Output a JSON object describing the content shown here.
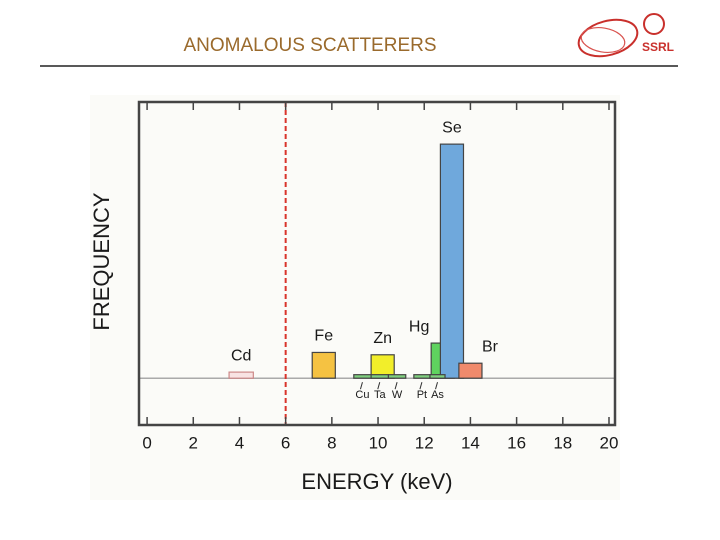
{
  "slide_title": "ANOMALOUS SCATTERERS",
  "logo": "SSRL",
  "chart_data": {
    "type": "bar",
    "xlabel": "ENERGY (keV)",
    "ylabel": "FREQUENCY",
    "xlim": [
      -0.35,
      20.26
    ],
    "ylim": [
      -20,
      118
    ],
    "xticks": [
      0,
      2,
      4,
      6,
      8,
      10,
      12,
      14,
      16,
      18,
      20
    ],
    "reference_line": 6,
    "reference_color": "#d9342b",
    "baseline": 0,
    "bars": [
      {
        "name": "Cd",
        "x": [
          3.55,
          4.6
        ],
        "value": 2.6,
        "color": "#f8e3e3",
        "stroke": "#c88",
        "label_position": "above"
      },
      {
        "name": "Fe",
        "x": [
          7.15,
          8.15
        ],
        "value": 11,
        "color": "#f5c242",
        "stroke": "#444",
        "label_position": "above"
      },
      {
        "name": "Zn",
        "x": [
          9.7,
          10.7
        ],
        "value": 10,
        "color": "#f2ee2a",
        "stroke": "#444",
        "label_position": "above"
      },
      {
        "name": "Hg",
        "x": [
          12.3,
          13.3
        ],
        "value": 15,
        "color": "#5fd35f",
        "stroke": "#444",
        "label_position": "above-left"
      },
      {
        "name": "Se",
        "x": [
          12.7,
          13.7
        ],
        "value": 100,
        "color": "#6fa8dc",
        "stroke": "#444",
        "label_position": "above"
      },
      {
        "name": "Br",
        "x": [
          13.5,
          14.5
        ],
        "value": 6.4,
        "color": "#f08a6c",
        "stroke": "#444",
        "label_position": "above-right"
      },
      {
        "name": "Cu",
        "x": [
          8.95,
          9.7
        ],
        "value": 1.5,
        "color": "#7fcf7f",
        "stroke": "#444",
        "label_position": "below"
      },
      {
        "name": "Ta",
        "x": [
          9.7,
          10.45
        ],
        "value": 1.5,
        "color": "#7fcf7f",
        "stroke": "#444",
        "label_position": "below"
      },
      {
        "name": "W",
        "x": [
          10.45,
          11.2
        ],
        "value": 1.5,
        "color": "#7fcf7f",
        "stroke": "#444",
        "label_position": "below"
      },
      {
        "name": "Pt",
        "x": [
          11.55,
          12.25
        ],
        "value": 1.5,
        "color": "#7fcf7f",
        "stroke": "#444",
        "label_position": "below"
      },
      {
        "name": "As",
        "x": [
          12.25,
          12.9
        ],
        "value": 1.5,
        "color": "#7fcf7f",
        "stroke": "#444",
        "label_position": "below"
      }
    ]
  }
}
